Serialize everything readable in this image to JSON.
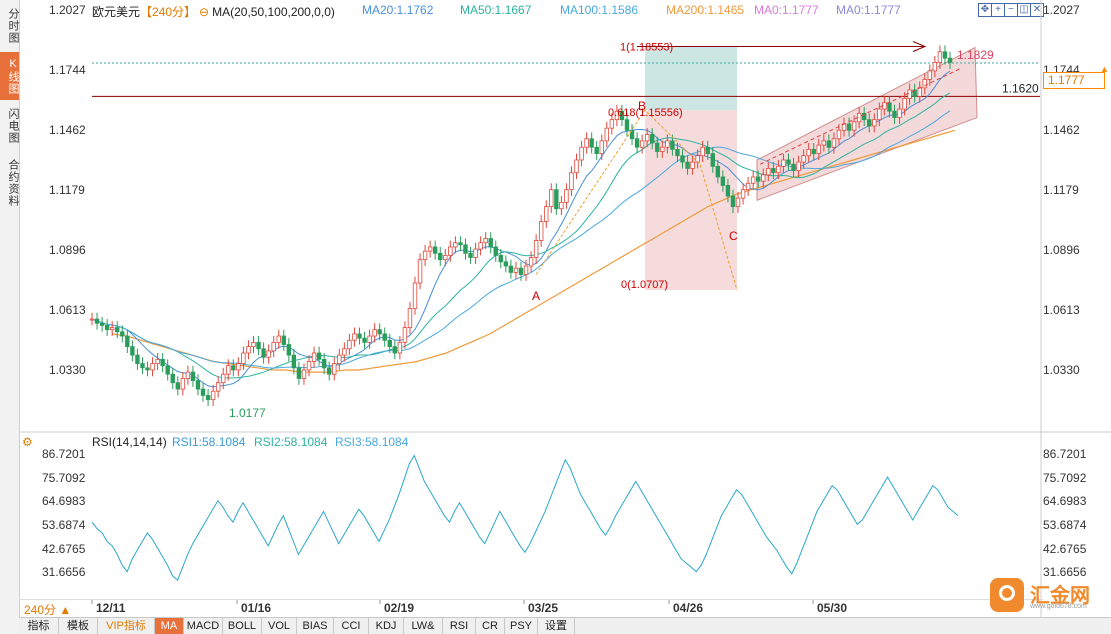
{
  "sidebar": {
    "items": [
      {
        "label": "分时图",
        "active": false
      },
      {
        "label": "K线图",
        "active": true
      },
      {
        "label": "闪电图",
        "active": false
      },
      {
        "label": "合约资料",
        "active": false
      }
    ]
  },
  "header": {
    "symbol": "欧元美元",
    "period": "【240分】",
    "ma_label": "MA(20,50,100,200,0,0)",
    "ma_items": [
      {
        "text": "MA20:1.1762",
        "color": "#4a90d9"
      },
      {
        "text": "MA50:1.1667",
        "color": "#2bb3a0"
      },
      {
        "text": "MA100:1.1586",
        "color": "#4aa8e0"
      },
      {
        "text": "MA200:1.1465",
        "color": "#f09a3a"
      },
      {
        "text": "MA0:1.1777",
        "color": "#d97ad9"
      },
      {
        "text": "MA0:1.1777",
        "color": "#8a8ad9"
      }
    ]
  },
  "toolbar_icons": [
    "move-icon",
    "zoom-in-icon",
    "zoom-out-icon",
    "fullscreen-icon",
    "close-icon"
  ],
  "price_axis": {
    "ticks": [
      "1.2027",
      "1.1744",
      "1.1462",
      "1.1179",
      "1.0896",
      "1.0613",
      "1.0330"
    ],
    "current_price": "1.1777"
  },
  "rsi_panel": {
    "title": "RSI(14,14,14)",
    "items": [
      {
        "text": "RSI1:58.1084",
        "color": "#3a9ad9"
      },
      {
        "text": "RSI2:58.1084",
        "color": "#2bb3a0"
      },
      {
        "text": "RSI3:58.1084",
        "color": "#4aa8e0"
      }
    ],
    "ticks": [
      "86.7201",
      "75.7092",
      "64.6983",
      "53.6874",
      "42.6765",
      "31.6656"
    ]
  },
  "time_axis": {
    "period_button": "240分",
    "labels": [
      "12/11",
      "01/16",
      "02/19",
      "03/25",
      "04/26",
      "05/30"
    ]
  },
  "annotations": {
    "fib_top": "1(1.18553)",
    "fib_618": "0.618(1.15556)",
    "fib_zero": "0(1.0707)",
    "point_a": "A",
    "point_b": "B",
    "point_c": "C",
    "high_label": "1.1829",
    "resistance_label": "1.1620",
    "low_label": "1.0177"
  },
  "bottom_tabs": [
    {
      "label": "指标",
      "active": false
    },
    {
      "label": "模板",
      "active": false
    },
    {
      "label": "VIP指标",
      "active": false
    },
    {
      "label": "MA",
      "active": true
    },
    {
      "label": "MACD",
      "active": false
    },
    {
      "label": "BOLL",
      "active": false
    },
    {
      "label": "VOL",
      "active": false
    },
    {
      "label": "BIAS",
      "active": false
    },
    {
      "label": "CCI",
      "active": false
    },
    {
      "label": "KDJ",
      "active": false
    },
    {
      "label": "LW&",
      "active": false
    },
    {
      "label": "RSI",
      "active": false
    },
    {
      "label": "CR",
      "active": false
    },
    {
      "label": "PSY",
      "active": false
    },
    {
      "label": "设置",
      "active": false
    }
  ],
  "logo": {
    "text": "汇金网",
    "subtext": "www.gold678.com"
  },
  "chart_data": {
    "type": "line",
    "subtype": "candlestick with moving averages and RSI",
    "price_ylim": [
      1.0047,
      1.2027
    ],
    "rsi_ylim": [
      20.65,
      86.7201
    ],
    "start_date": "12/11",
    "key_points": {
      "low": 1.0177,
      "A": 1.078,
      "B": 1.1555,
      "C": 1.0707,
      "high": 1.1829,
      "resistance": 1.162,
      "current": 1.1777
    },
    "close_series": [
      1.057,
      1.055,
      1.054,
      1.052,
      1.053,
      1.051,
      1.049,
      1.044,
      1.04,
      1.036,
      1.034,
      1.033,
      1.036,
      1.038,
      1.035,
      1.031,
      1.027,
      1.024,
      1.029,
      1.032,
      1.028,
      1.024,
      1.021,
      1.019,
      1.023,
      1.027,
      1.031,
      1.035,
      1.033,
      1.036,
      1.041,
      1.044,
      1.046,
      1.043,
      1.039,
      1.042,
      1.046,
      1.049,
      1.045,
      1.04,
      1.034,
      1.029,
      1.033,
      1.037,
      1.041,
      1.038,
      1.034,
      1.031,
      1.036,
      1.04,
      1.043,
      1.047,
      1.05,
      1.048,
      1.046,
      1.049,
      1.052,
      1.05,
      1.047,
      1.044,
      1.041,
      1.046,
      1.053,
      1.062,
      1.074,
      1.085,
      1.089,
      1.091,
      1.088,
      1.085,
      1.087,
      1.091,
      1.093,
      1.092,
      1.088,
      1.086,
      1.09,
      1.093,
      1.095,
      1.091,
      1.087,
      1.084,
      1.082,
      1.079,
      1.081,
      1.078,
      1.082,
      1.086,
      1.094,
      1.103,
      1.11,
      1.118,
      1.109,
      1.112,
      1.118,
      1.126,
      1.132,
      1.138,
      1.142,
      1.138,
      1.135,
      1.141,
      1.147,
      1.151,
      1.155,
      1.151,
      1.146,
      1.142,
      1.138,
      1.141,
      1.144,
      1.14,
      1.136,
      1.138,
      1.141,
      1.137,
      1.134,
      1.131,
      1.128,
      1.131,
      1.134,
      1.138,
      1.135,
      1.129,
      1.124,
      1.12,
      1.115,
      1.11,
      1.114,
      1.118,
      1.121,
      1.124,
      1.122,
      1.125,
      1.128,
      1.126,
      1.129,
      1.132,
      1.13,
      1.127,
      1.131,
      1.134,
      1.137,
      1.135,
      1.139,
      1.141,
      1.138,
      1.142,
      1.146,
      1.149,
      1.146,
      1.15,
      1.154,
      1.151,
      1.148,
      1.151,
      1.156,
      1.159,
      1.155,
      1.152,
      1.156,
      1.161,
      1.165,
      1.162,
      1.166,
      1.17,
      1.174,
      1.178,
      1.183,
      1.18,
      1.178
    ],
    "ma200_series": [
      1.05,
      1.049,
      1.047,
      1.045,
      1.043,
      1.041,
      1.039,
      1.037,
      1.036,
      1.035,
      1.034,
      1.033,
      1.033,
      1.032,
      1.032,
      1.032,
      1.033,
      1.033,
      1.034,
      1.035,
      1.036,
      1.037,
      1.039,
      1.041,
      1.044,
      1.047,
      1.05,
      1.054,
      1.058,
      1.062,
      1.066,
      1.07,
      1.074,
      1.078,
      1.082,
      1.086,
      1.09,
      1.094,
      1.098,
      1.102,
      1.106,
      1.11,
      1.113,
      1.116,
      1.118,
      1.12,
      1.122,
      1.124,
      1.126,
      1.128,
      1.13,
      1.132,
      1.134,
      1.136,
      1.138,
      1.14,
      1.142,
      1.144,
      1.146
    ],
    "rsi_series": [
      55,
      52,
      50,
      46,
      44,
      40,
      35,
      32,
      38,
      42,
      46,
      50,
      47,
      43,
      39,
      35,
      30,
      28,
      34,
      40,
      45,
      49,
      53,
      57,
      61,
      65,
      62,
      58,
      55,
      60,
      64,
      60,
      56,
      52,
      48,
      44,
      49,
      54,
      58,
      52,
      46,
      40,
      44,
      48,
      52,
      56,
      60,
      55,
      50,
      45,
      49,
      53,
      57,
      61,
      58,
      54,
      50,
      46,
      51,
      56,
      62,
      68,
      75,
      82,
      86,
      80,
      74,
      70,
      66,
      62,
      58,
      55,
      60,
      64,
      60,
      56,
      52,
      48,
      45,
      50,
      55,
      60,
      56,
      52,
      48,
      44,
      41,
      45,
      50,
      55,
      60,
      66,
      72,
      78,
      84,
      80,
      74,
      68,
      64,
      60,
      56,
      52,
      49,
      53,
      58,
      62,
      66,
      70,
      74,
      70,
      66,
      62,
      58,
      54,
      50,
      46,
      42,
      38,
      36,
      34,
      32,
      35,
      40,
      46,
      52,
      58,
      62,
      66,
      70,
      68,
      64,
      60,
      56,
      52,
      48,
      45,
      42,
      38,
      34,
      31,
      36,
      42,
      48,
      54,
      60,
      64,
      68,
      72,
      70,
      66,
      62,
      58,
      54,
      56,
      60,
      64,
      68,
      72,
      76,
      72,
      68,
      64,
      60,
      56,
      60,
      64,
      68,
      72,
      70,
      66,
      62,
      60,
      58
    ],
    "channel": {
      "lower_start": 1.113,
      "lower_end": 1.152,
      "upper_start": 1.132,
      "upper_end": 1.185
    }
  }
}
